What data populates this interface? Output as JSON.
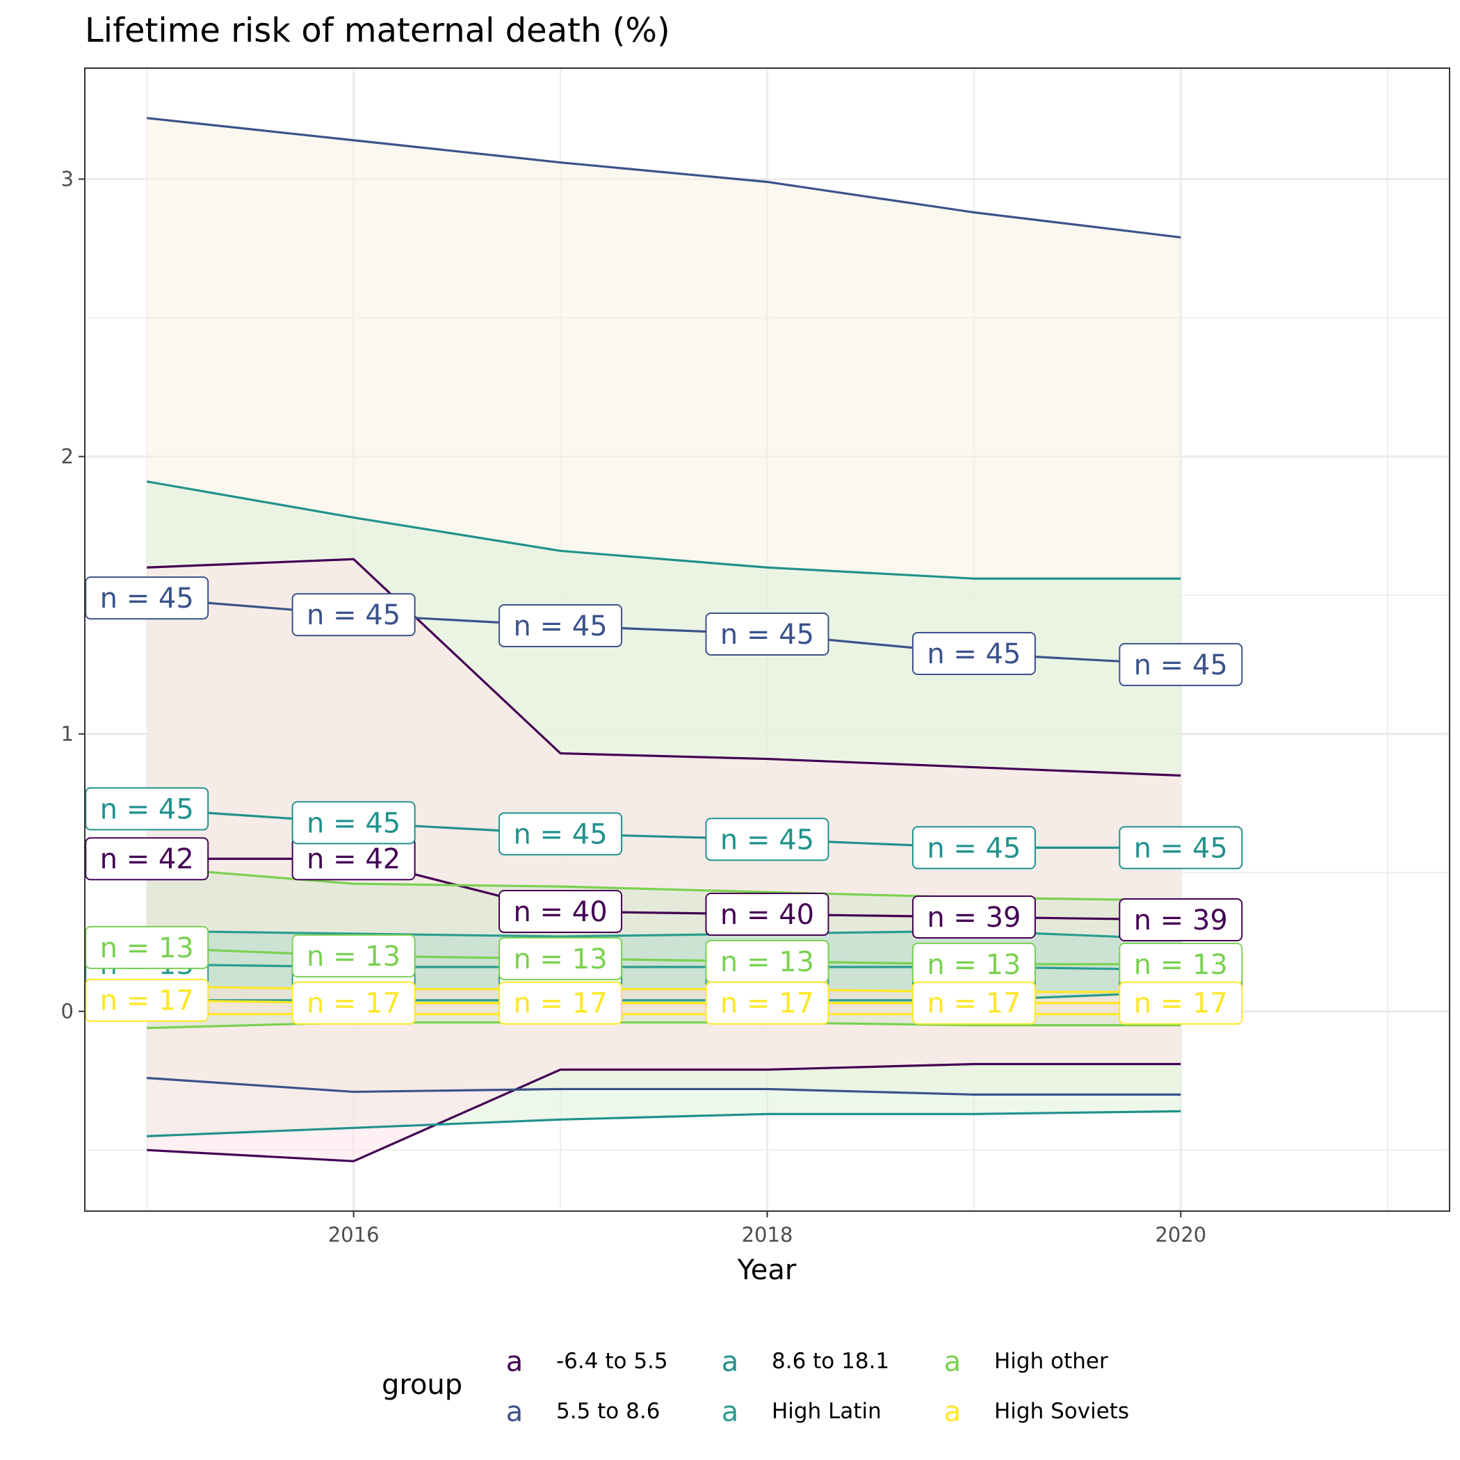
{
  "chart_data": {
    "type": "line",
    "title": "Lifetime risk of maternal death (%)",
    "xlabel": "Year",
    "ylabel": "",
    "xlim": [
      2014.7,
      2021.3
    ],
    "ylim": [
      -0.72,
      3.4
    ],
    "x_ticks": [
      2016,
      2018,
      2020
    ],
    "y_ticks": [
      0,
      1,
      2,
      3
    ],
    "grid": true,
    "legend_position": "bottom",
    "legend_title": "group",
    "legend_key_glyph": "a",
    "x": [
      2015,
      2016,
      2017,
      2018,
      2019,
      2020
    ],
    "series": [
      {
        "name": "-6.4 to 5.5",
        "color": "#440154",
        "fill": "#ffe4ea",
        "upper": [
          1.6,
          1.63,
          0.93,
          0.91,
          0.88,
          0.85
        ],
        "mean": [
          0.55,
          0.55,
          0.36,
          0.35,
          0.34,
          0.33
        ],
        "lower": [
          -0.5,
          -0.54,
          -0.21,
          -0.21,
          -0.19,
          -0.19
        ],
        "n": [
          "n = 42",
          "n = 42",
          "n = 40",
          "n = 40",
          "n = 39",
          "n = 39"
        ]
      },
      {
        "name": "5.5 to 8.6",
        "color": "#3b528b",
        "fill": "#f6f3e2",
        "upper": [
          3.22,
          3.14,
          3.06,
          2.99,
          2.88,
          2.79
        ],
        "mean": [
          1.49,
          1.43,
          1.39,
          1.36,
          1.29,
          1.25
        ],
        "lower": [
          -0.24,
          -0.29,
          -0.28,
          -0.28,
          -0.3,
          -0.3
        ],
        "n": [
          "n = 45",
          "n = 45",
          "n = 45",
          "n = 45",
          "n = 45",
          "n = 45"
        ]
      },
      {
        "name": "8.6 to 18.1",
        "color": "#21918c",
        "fill": "#dff0d8",
        "upper": [
          1.91,
          1.78,
          1.66,
          1.6,
          1.56,
          1.56
        ],
        "mean": [
          0.73,
          0.68,
          0.64,
          0.62,
          0.59,
          0.59
        ],
        "lower": [
          -0.45,
          -0.42,
          -0.39,
          -0.37,
          -0.37,
          -0.36
        ],
        "n": [
          "n = 45",
          "n = 45",
          "n = 45",
          "n = 45",
          "n = 45",
          "n = 45"
        ]
      },
      {
        "name": "High Latin",
        "color": "#2a9d8f",
        "fill": "#b8dccd",
        "upper": [
          0.29,
          0.28,
          0.27,
          0.28,
          0.29,
          0.26
        ],
        "mean": [
          0.17,
          0.16,
          0.16,
          0.16,
          0.16,
          0.15
        ],
        "lower": [
          0.04,
          0.04,
          0.04,
          0.04,
          0.04,
          0.07
        ],
        "n": [
          "n = 13",
          "n = 13",
          "n = 13",
          "n = 13",
          "n = 13",
          "n = 13"
        ]
      },
      {
        "name": "High other",
        "color": "#7ad151",
        "fill": "#d7e8cf",
        "upper": [
          0.52,
          0.46,
          0.45,
          0.43,
          0.41,
          0.4
        ],
        "mean": [
          0.23,
          0.2,
          0.19,
          0.18,
          0.17,
          0.17
        ],
        "lower": [
          -0.06,
          -0.04,
          -0.04,
          -0.04,
          -0.05,
          -0.05
        ],
        "n": [
          "n = 13",
          "n = 13",
          "n = 13",
          "n = 13",
          "n = 13",
          "n = 13"
        ]
      },
      {
        "name": "High Soviets",
        "color": "#fde725",
        "fill": "#fbe3d6",
        "upper": [
          0.09,
          0.08,
          0.08,
          0.08,
          0.07,
          0.07
        ],
        "mean": [
          0.04,
          0.03,
          0.03,
          0.03,
          0.03,
          0.03
        ],
        "lower": [
          -0.01,
          -0.01,
          -0.01,
          -0.01,
          -0.01,
          -0.01
        ],
        "n": [
          "n = 17",
          "n = 17",
          "n = 17",
          "n = 17",
          "n = 17",
          "n = 17"
        ]
      }
    ]
  }
}
